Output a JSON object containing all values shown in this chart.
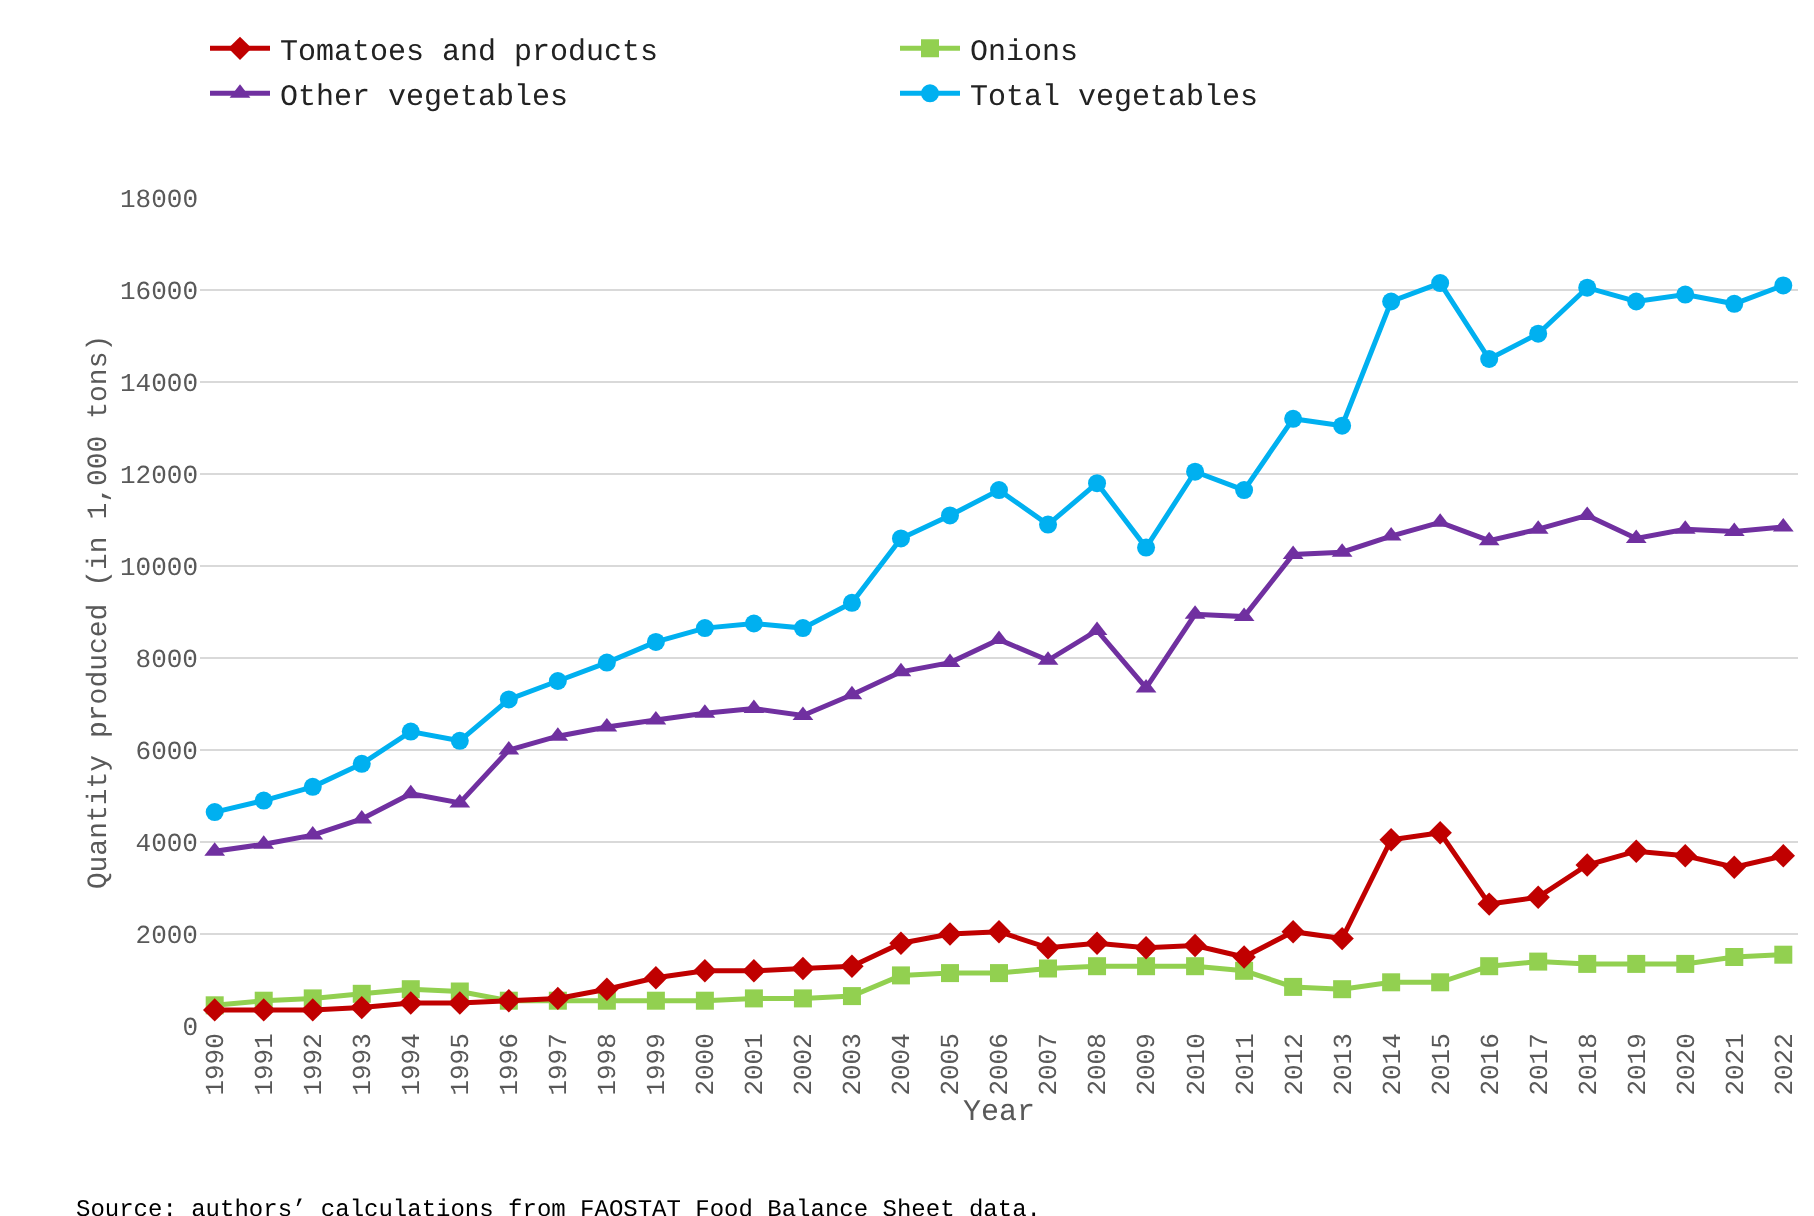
{
  "chart_data": {
    "type": "line",
    "xlabel": "Year",
    "ylabel": "Quantity produced (in 1,000 tons)",
    "categories": [
      "1990",
      "1991",
      "1992",
      "1993",
      "1994",
      "1995",
      "1996",
      "1997",
      "1998",
      "1999",
      "2000",
      "2001",
      "2002",
      "2003",
      "2004",
      "2005",
      "2006",
      "2007",
      "2008",
      "2009",
      "2010",
      "2011",
      "2012",
      "2013",
      "2014",
      "2015",
      "2016",
      "2017",
      "2018",
      "2019",
      "2020",
      "2021",
      "2022"
    ],
    "series": [
      {
        "name": "Tomatoes and products",
        "color": "#c00000",
        "marker": "diamond",
        "values": [
          350,
          350,
          350,
          400,
          500,
          500,
          550,
          600,
          800,
          1050,
          1200,
          1200,
          1250,
          1300,
          1800,
          2000,
          2050,
          1700,
          1800,
          1700,
          1750,
          1500,
          2050,
          1900,
          4050,
          4200,
          2650,
          2800,
          3500,
          3800,
          3700,
          3450,
          3700
        ]
      },
      {
        "name": "Onions",
        "color": "#92d050",
        "marker": "square",
        "values": [
          450,
          550,
          600,
          700,
          800,
          750,
          550,
          550,
          550,
          550,
          550,
          600,
          600,
          650,
          1100,
          1150,
          1150,
          1250,
          1300,
          1300,
          1300,
          1200,
          850,
          800,
          950,
          950,
          1300,
          1400,
          1350,
          1350,
          1350,
          1500,
          1550
        ]
      },
      {
        "name": "Other vegetables",
        "color": "#7030a0",
        "marker": "triangle",
        "values": [
          3800,
          3950,
          4150,
          4500,
          5050,
          4850,
          6000,
          6300,
          6500,
          6650,
          6800,
          6900,
          6750,
          7200,
          7700,
          7900,
          8400,
          7950,
          8600,
          7350,
          8950,
          8900,
          10250,
          10300,
          10650,
          10950,
          10550,
          10800,
          11100,
          10600,
          10800,
          10750,
          10850
        ]
      },
      {
        "name": "Total vegetables",
        "color": "#00b0f0",
        "marker": "circle",
        "values": [
          4650,
          4900,
          5200,
          5700,
          6400,
          6200,
          7100,
          7500,
          7900,
          8350,
          8650,
          8750,
          8650,
          9200,
          10600,
          11100,
          11650,
          10900,
          11800,
          10400,
          12050,
          11650,
          13200,
          13050,
          15750,
          16150,
          14500,
          15050,
          16050,
          15750,
          15900,
          15700,
          16100
        ]
      }
    ],
    "ylim": [
      0,
      18000
    ],
    "yticks": [
      0,
      2000,
      4000,
      6000,
      8000,
      10000,
      12000,
      14000,
      16000,
      18000
    ],
    "grid": "y",
    "legend": "top left",
    "line_style": "solid",
    "annotations": [
      "Source: authors’ calculations from FAOSTAT Food Balance Sheet data."
    ]
  }
}
